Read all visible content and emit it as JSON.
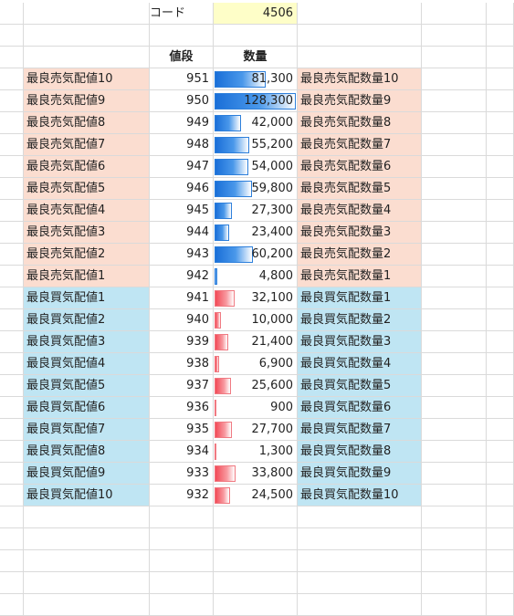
{
  "code": {
    "label": "コード",
    "value": "4506"
  },
  "headers": {
    "price": "値段",
    "quantity": "数量"
  },
  "max_quantity": 128300,
  "sell_rows": [
    {
      "label": "最良売気配値10",
      "price": "951",
      "qty": "81,300",
      "qty_num": 81300,
      "qty_label": "最良売気配数量10"
    },
    {
      "label": "最良売気配値9",
      "price": "950",
      "qty": "128,300",
      "qty_num": 128300,
      "qty_label": "最良売気配数量9"
    },
    {
      "label": "最良売気配値8",
      "price": "949",
      "qty": "42,000",
      "qty_num": 42000,
      "qty_label": "最良売気配数量8"
    },
    {
      "label": "最良売気配値7",
      "price": "948",
      "qty": "55,200",
      "qty_num": 55200,
      "qty_label": "最良売気配数量7"
    },
    {
      "label": "最良売気配値6",
      "price": "947",
      "qty": "54,000",
      "qty_num": 54000,
      "qty_label": "最良売気配数量6"
    },
    {
      "label": "最良売気配値5",
      "price": "946",
      "qty": "59,800",
      "qty_num": 59800,
      "qty_label": "最良売気配数量5"
    },
    {
      "label": "最良売気配値4",
      "price": "945",
      "qty": "27,300",
      "qty_num": 27300,
      "qty_label": "最良売気配数量4"
    },
    {
      "label": "最良売気配値3",
      "price": "944",
      "qty": "23,400",
      "qty_num": 23400,
      "qty_label": "最良売気配数量3"
    },
    {
      "label": "最良売気配値2",
      "price": "943",
      "qty": "60,200",
      "qty_num": 60200,
      "qty_label": "最良売気配数量2"
    },
    {
      "label": "最良売気配値1",
      "price": "942",
      "qty": "4,800",
      "qty_num": 4800,
      "qty_label": "最良売気配数量1"
    }
  ],
  "buy_rows": [
    {
      "label": "最良買気配値1",
      "price": "941",
      "qty": "32,100",
      "qty_num": 32100,
      "qty_label": "最良買気配数量1"
    },
    {
      "label": "最良買気配値2",
      "price": "940",
      "qty": "10,000",
      "qty_num": 10000,
      "qty_label": "最良買気配数量2"
    },
    {
      "label": "最良買気配値3",
      "price": "939",
      "qty": "21,400",
      "qty_num": 21400,
      "qty_label": "最良買気配数量3"
    },
    {
      "label": "最良買気配値4",
      "price": "938",
      "qty": "6,900",
      "qty_num": 6900,
      "qty_label": "最良買気配数量4"
    },
    {
      "label": "最良買気配値5",
      "price": "937",
      "qty": "25,600",
      "qty_num": 25600,
      "qty_label": "最良買気配数量5"
    },
    {
      "label": "最良買気配値6",
      "price": "936",
      "qty": "900",
      "qty_num": 900,
      "qty_label": "最良買気配数量6"
    },
    {
      "label": "最良買気配値7",
      "price": "935",
      "qty": "27,700",
      "qty_num": 27700,
      "qty_label": "最良買気配数量7"
    },
    {
      "label": "最良買気配値8",
      "price": "934",
      "qty": "1,300",
      "qty_num": 1300,
      "qty_label": "最良買気配数量8"
    },
    {
      "label": "最良買気配値9",
      "price": "933",
      "qty": "33,800",
      "qty_num": 33800,
      "qty_label": "最良買気配数量9"
    },
    {
      "label": "最良買気配値10",
      "price": "932",
      "qty": "24,500",
      "qty_num": 24500,
      "qty_label": "最良買気配数量10"
    }
  ],
  "colors": {
    "sell_bg": "#fbddd0",
    "buy_bg": "#bfe5f3",
    "code_bg": "#fefec8",
    "sell_bar": "#1a6fd8",
    "buy_bar": "#f24a57"
  }
}
